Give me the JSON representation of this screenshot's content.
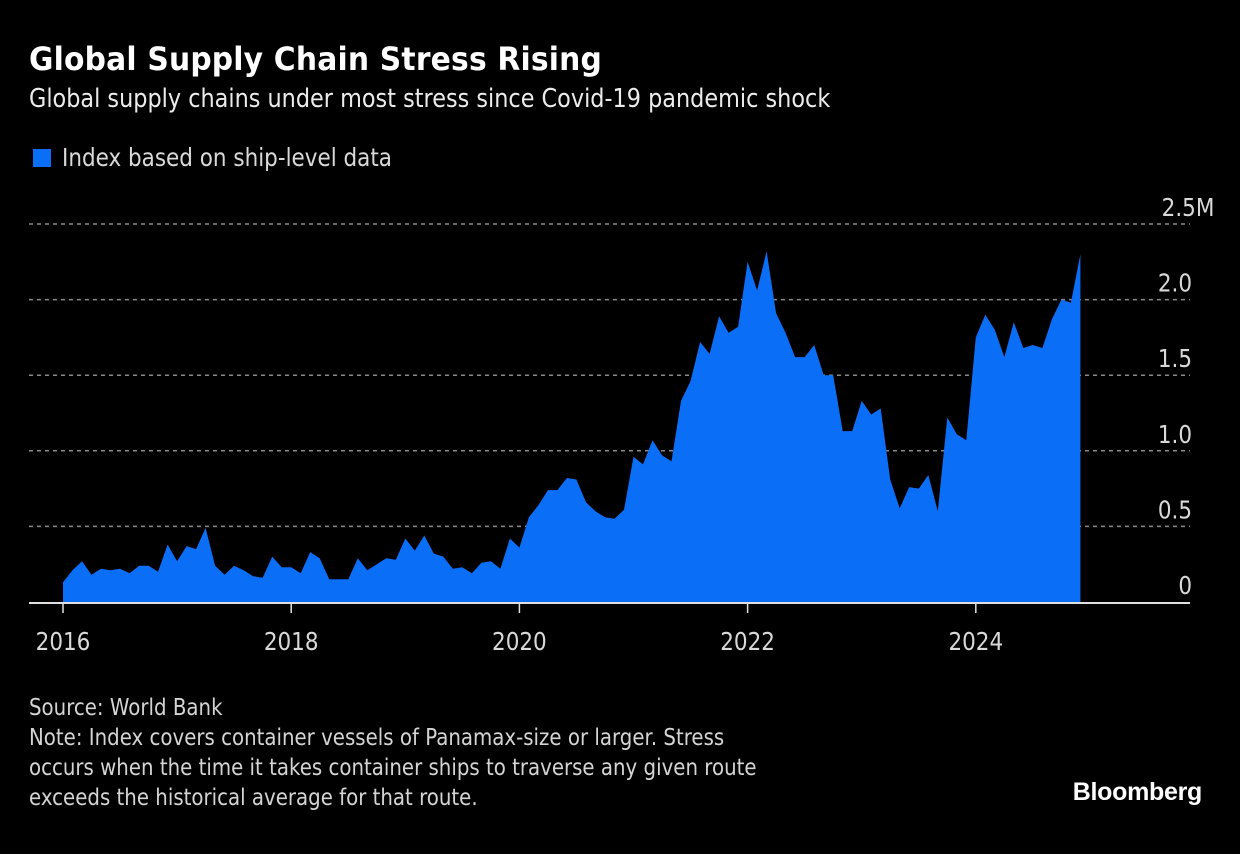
{
  "header": {
    "title": "Global Supply Chain Stress Rising",
    "subtitle": "Global supply chains under most stress since Covid-19 pandemic shock"
  },
  "legend": {
    "items": [
      {
        "label": "Index based on ship-level data",
        "color": "#0b6ef7"
      }
    ]
  },
  "footer": {
    "source": "Source: World Bank",
    "note_lines": [
      "Note: Index covers container vessels of Panamax-size or larger. Stress",
      "occurs when the time it takes container ships to traverse any given route",
      "exceeds the historical average for that route."
    ],
    "brand": "Bloomberg"
  },
  "chart_data": {
    "type": "area",
    "title": "Global Supply Chain Stress Rising",
    "subtitle": "Global supply chains under most stress since Covid-19 pandemic shock",
    "xlabel": "",
    "ylabel": "",
    "x_start": "2016-01",
    "x_frequency": "monthly",
    "x_ticks": [
      2016,
      2018,
      2020,
      2022,
      2024
    ],
    "x_range": [
      2016.0,
      2025.5
    ],
    "y_ticks": [
      0,
      0.5,
      1.0,
      1.5,
      2.0,
      2.5
    ],
    "y_tick_labels": [
      "0",
      "0.5",
      "1.0",
      "1.5",
      "2.0",
      "2.5M"
    ],
    "ylim": [
      0,
      2.5
    ],
    "y_unit": "M",
    "grid": true,
    "legend_position": "top-left",
    "series": [
      {
        "name": "Index based on ship-level data",
        "color": "#0b6ef7",
        "values": [
          0.13,
          0.21,
          0.27,
          0.18,
          0.22,
          0.21,
          0.22,
          0.19,
          0.24,
          0.24,
          0.2,
          0.38,
          0.27,
          0.37,
          0.35,
          0.49,
          0.24,
          0.18,
          0.24,
          0.21,
          0.17,
          0.16,
          0.3,
          0.23,
          0.23,
          0.19,
          0.33,
          0.29,
          0.15,
          0.15,
          0.15,
          0.29,
          0.21,
          0.25,
          0.29,
          0.28,
          0.42,
          0.34,
          0.44,
          0.32,
          0.3,
          0.22,
          0.23,
          0.19,
          0.26,
          0.27,
          0.22,
          0.42,
          0.36,
          0.56,
          0.64,
          0.74,
          0.74,
          0.82,
          0.81,
          0.66,
          0.6,
          0.56,
          0.55,
          0.61,
          0.96,
          0.91,
          1.07,
          0.97,
          0.93,
          1.33,
          1.46,
          1.72,
          1.64,
          1.89,
          1.78,
          1.82,
          2.25,
          2.06,
          2.32,
          1.91,
          1.78,
          1.62,
          1.62,
          1.7,
          1.5,
          1.5,
          1.13,
          1.13,
          1.33,
          1.24,
          1.28,
          0.81,
          0.62,
          0.76,
          0.75,
          0.84,
          0.6,
          1.22,
          1.11,
          1.07,
          1.75,
          1.9,
          1.8,
          1.62,
          1.85,
          1.68,
          1.7,
          1.68,
          1.87,
          2.0,
          1.98,
          2.3
        ]
      }
    ]
  }
}
